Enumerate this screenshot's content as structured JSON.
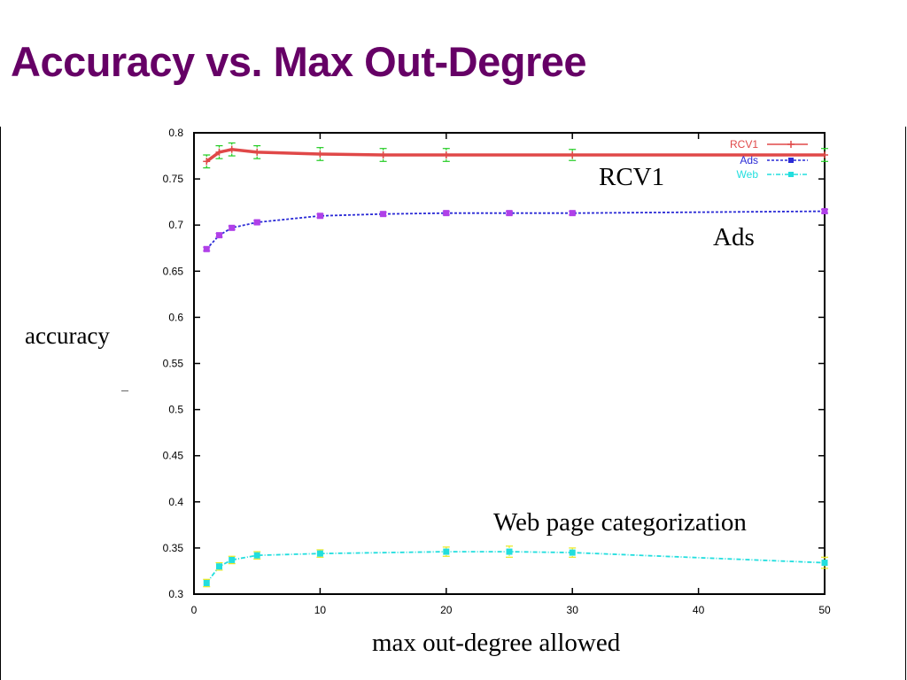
{
  "slide": {
    "title": "Accuracy vs. Max Out-Degree",
    "ylabel": "accuracy",
    "xlabel": "max out-degree allowed",
    "annotations": {
      "rcv1": "RCV1",
      "ads": "Ads",
      "web": "Web page categorization"
    }
  },
  "colors": {
    "title": "#660066",
    "rcv1": "#e04848",
    "ads": "#2b2bd6",
    "web": "#22dede",
    "ads_marker": "#b040e8",
    "rcv1_error": "#22cc22",
    "web_error": "#e8e820"
  },
  "chart_data": {
    "type": "line",
    "xlim": [
      0,
      50
    ],
    "ylim": [
      0.3,
      0.8
    ],
    "xticks": [
      0,
      10,
      20,
      30,
      40,
      50
    ],
    "yticks": [
      0.3,
      0.35,
      0.4,
      0.45,
      0.5,
      0.55,
      0.6,
      0.65,
      0.7,
      0.75,
      0.8
    ],
    "ytick_labels": [
      "0.3",
      "0.35",
      "0.4",
      "0.45",
      "0.5",
      "0.55",
      "0.6",
      "0.65",
      "0.7",
      "0.75",
      "0.8"
    ],
    "legend_position": "top-right",
    "grid": false,
    "series": [
      {
        "name": "RCV1",
        "key": "rcv1",
        "x": [
          1,
          2,
          3,
          5,
          10,
          15,
          20,
          30,
          50
        ],
        "y": [
          0.769,
          0.779,
          0.782,
          0.779,
          0.777,
          0.776,
          0.776,
          0.776,
          0.776
        ],
        "err": [
          0.007,
          0.007,
          0.007,
          0.007,
          0.007,
          0.007,
          0.007,
          0.006,
          0.007
        ]
      },
      {
        "name": "Ads",
        "key": "ads",
        "x": [
          1,
          2,
          3,
          5,
          10,
          15,
          20,
          25,
          30,
          50
        ],
        "y": [
          0.674,
          0.689,
          0.697,
          0.703,
          0.71,
          0.712,
          0.713,
          0.713,
          0.713,
          0.715
        ],
        "err": [
          0.002,
          0.002,
          0.002,
          0.002,
          0.002,
          0.002,
          0.002,
          0.002,
          0.002,
          0.002
        ]
      },
      {
        "name": "Web",
        "key": "web",
        "x": [
          1,
          2,
          3,
          5,
          10,
          20,
          25,
          30,
          50
        ],
        "y": [
          0.312,
          0.33,
          0.337,
          0.342,
          0.344,
          0.346,
          0.346,
          0.345,
          0.334
        ],
        "err": [
          0.004,
          0.004,
          0.004,
          0.004,
          0.004,
          0.005,
          0.006,
          0.005,
          0.006
        ]
      }
    ]
  }
}
